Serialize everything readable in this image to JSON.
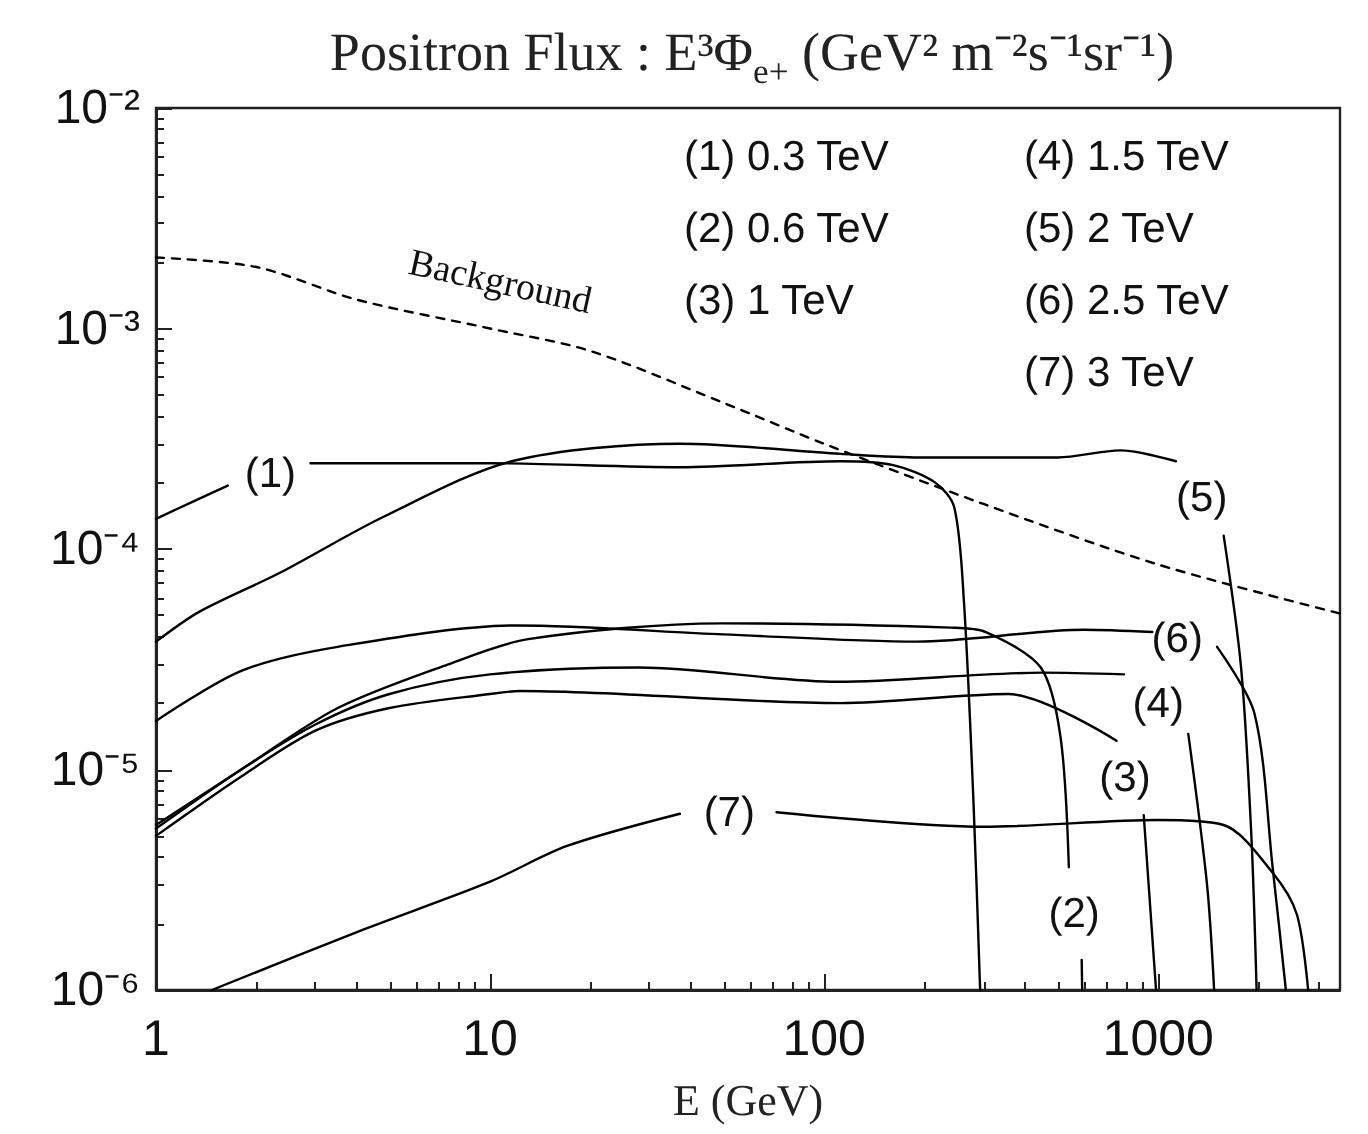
{
  "chart_data": {
    "type": "line",
    "title": "Positron Flux : E³Φ$_{e+}$ (GeV² m⁻²s⁻¹sr⁻¹)",
    "xlabel": "E (GeV)",
    "log": "xy",
    "xlim": [
      1,
      3500
    ],
    "xticks": [
      1,
      10,
      100,
      1000
    ],
    "ylim": [
      1e-06,
      0.01
    ],
    "yticks": [
      {
        "value": 1e-06,
        "label": "10⁻⁶"
      },
      {
        "value": 1e-05,
        "label": "10⁻⁵"
      },
      {
        "value": 0.0001,
        "label": "10⁻⁴"
      },
      {
        "value": 0.001,
        "label": "10⁻³"
      },
      {
        "value": 0.01,
        "label": "10⁻²"
      }
    ],
    "series": [
      {
        "name": "Background",
        "color": "#000000",
        "line_style": "dashed",
        "x": [
          1,
          2,
          4,
          10,
          20,
          50,
          100,
          300,
          1000,
          3500
        ],
        "values": [
          0.0021,
          0.0019,
          0.00135,
          0.001,
          0.00079,
          0.00046,
          0.0003,
          0.00016,
          8.5e-05,
          5.1e-05
        ]
      },
      {
        "name": "(1)",
        "color": "#000000",
        "x": [
          1,
          1.3,
          1.64,
          2.2,
          2.9,
          10,
          37,
          112,
          161,
          215,
          245,
          262,
          280,
          293
        ],
        "values": [
          0.000137,
          0.000165,
          0.000194,
          null,
          0.000245,
          0.000245,
          0.000235,
          0.00025,
          0.00024,
          0.0002,
          0.000155,
          5.8e-05,
          7e-06,
          1e-06
        ]
      },
      {
        "name": "(2)",
        "color": "#000000",
        "x": [
          1,
          1.8,
          3.5,
          7.5,
          13,
          49,
          240,
          305,
          445,
          510,
          540,
          560,
          590,
          592
        ],
        "values": [
          5.6e-06,
          1e-05,
          1.9e-05,
          3e-05,
          3.9e-05,
          4.6e-05,
          4.4e-05,
          4.2e-05,
          2.9e-05,
          1.4e-05,
          3.6e-06,
          null,
          1.37e-06,
          1e-06
        ]
      },
      {
        "name": "(3)",
        "color": "#000000",
        "x": [
          1,
          1.8,
          3,
          5,
          10,
          12.3,
          112,
          355,
          750,
          795,
          905,
          985
        ],
        "values": [
          5e-06,
          9.3e-06,
          1.5e-05,
          1.9e-05,
          2.2e-05,
          2.27e-05,
          2e-05,
          2.2e-05,
          1.35e-05,
          null,
          6.2e-06,
          1e-06
        ]
      },
      {
        "name": "(4)",
        "color": "#000000",
        "x": [
          1,
          1.8,
          3,
          5,
          10,
          28,
          110,
          450,
          790,
          1000,
          1230,
          1400,
          1470
        ],
        "values": [
          5.4e-06,
          1e-05,
          1.6e-05,
          2.2e-05,
          2.7e-05,
          2.9e-05,
          2.5e-05,
          2.75e-05,
          2.7e-05,
          null,
          1.45e-05,
          3e-06,
          1e-06
        ]
      },
      {
        "name": "(5)",
        "color": "#000000",
        "x": [
          1,
          1.35,
          2.35,
          4.8,
          11.6,
          37,
          112,
          193,
          500,
          770,
          1130,
          1350,
          1570,
          1770,
          1900,
          1970
        ],
        "values": [
          3.8e-05,
          5.2e-05,
          7.8e-05,
          0.00014,
          0.00025,
          0.0003,
          0.00027,
          0.00026,
          0.00026,
          0.00028,
          0.00025,
          null,
          0.000115,
          2.9e-05,
          5e-06,
          1e-06
        ]
      },
      {
        "name": "(6)",
        "color": "#000000",
        "x": [
          1,
          1.8,
          3.5,
          12,
          50,
          190,
          600,
          960,
          1140,
          1500,
          1940,
          2200,
          2410
        ],
        "values": [
          1.66e-05,
          2.8e-05,
          3.6e-05,
          4.5e-05,
          4.1e-05,
          3.8e-05,
          4.3e-05,
          4.2e-05,
          null,
          3.6e-05,
          1.8e-05,
          3.6e-06,
          1e-06
        ]
      },
      {
        "name": "(7)",
        "color": "#000000",
        "x": [
          1.47,
          4.1,
          10,
          17,
          37,
          52,
          72,
          300,
          1000,
          1570,
          2200,
          2600,
          2810
        ],
        "values": [
          1e-06,
          1.86e-06,
          3.1e-06,
          4.5e-06,
          6.3e-06,
          null,
          6.4e-06,
          5.5e-06,
          5.9e-06,
          5.6e-06,
          3.4e-06,
          2.2e-06,
          1e-06
        ]
      }
    ],
    "annotations": [
      "(1) 0.3 TeV",
      "(2) 0.6 TeV",
      "(3) 1 TeV",
      "(4) 1.5 TeV",
      "(5) 2 TeV",
      "(6) 2.5 TeV",
      "(7) 3 TeV"
    ]
  }
}
